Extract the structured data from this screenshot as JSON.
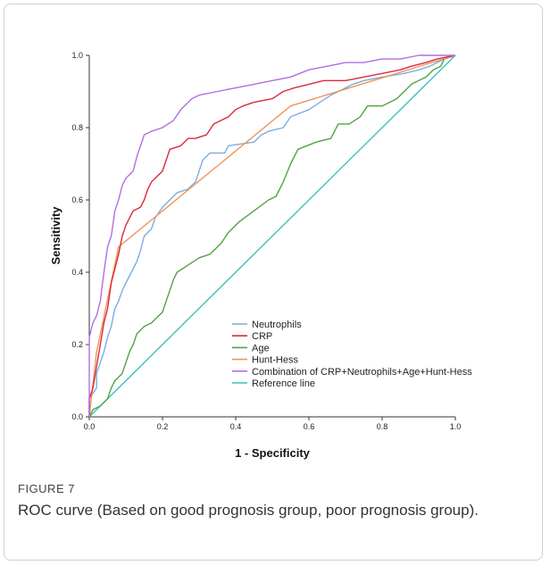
{
  "figure": {
    "label": "FIGURE 7",
    "caption": "ROC curve (Based on good prognosis group, poor prognosis group)."
  },
  "chart_data": {
    "type": "line",
    "title": "",
    "xlabel": "1 - Specificity",
    "ylabel": "Sensitivity",
    "xlim": [
      0,
      1
    ],
    "ylim": [
      0,
      1
    ],
    "xticks": [
      "0.0",
      "0.2",
      "0.4",
      "0.6",
      "0.8",
      "1.0"
    ],
    "yticks": [
      "0.0",
      "0.2",
      "0.4",
      "0.6",
      "0.8",
      "1.0"
    ],
    "grid": false,
    "legend_position": "bottom-right",
    "series": [
      {
        "name": "Neutrophils",
        "color": "#7aaee2",
        "points": [
          [
            0,
            0
          ],
          [
            0,
            0.05
          ],
          [
            0.02,
            0.08
          ],
          [
            0.02,
            0.12
          ],
          [
            0.03,
            0.15
          ],
          [
            0.04,
            0.18
          ],
          [
            0.05,
            0.22
          ],
          [
            0.06,
            0.25
          ],
          [
            0.07,
            0.3
          ],
          [
            0.08,
            0.32
          ],
          [
            0.09,
            0.35
          ],
          [
            0.1,
            0.37
          ],
          [
            0.11,
            0.39
          ],
          [
            0.12,
            0.41
          ],
          [
            0.13,
            0.43
          ],
          [
            0.14,
            0.46
          ],
          [
            0.15,
            0.5
          ],
          [
            0.17,
            0.52
          ],
          [
            0.18,
            0.55
          ],
          [
            0.2,
            0.58
          ],
          [
            0.22,
            0.6
          ],
          [
            0.24,
            0.62
          ],
          [
            0.27,
            0.63
          ],
          [
            0.29,
            0.65
          ],
          [
            0.3,
            0.68
          ],
          [
            0.31,
            0.71
          ],
          [
            0.33,
            0.73
          ],
          [
            0.37,
            0.73
          ],
          [
            0.38,
            0.75
          ],
          [
            0.45,
            0.76
          ],
          [
            0.47,
            0.78
          ],
          [
            0.49,
            0.79
          ],
          [
            0.53,
            0.8
          ],
          [
            0.55,
            0.83
          ],
          [
            0.6,
            0.85
          ],
          [
            0.63,
            0.87
          ],
          [
            0.66,
            0.89
          ],
          [
            0.68,
            0.9
          ],
          [
            0.72,
            0.92
          ],
          [
            0.75,
            0.93
          ],
          [
            0.8,
            0.94
          ],
          [
            0.86,
            0.95
          ],
          [
            0.9,
            0.96
          ],
          [
            0.93,
            0.97
          ],
          [
            0.95,
            0.98
          ],
          [
            0.97,
            0.99
          ],
          [
            1,
            1
          ]
        ]
      },
      {
        "name": "CRP",
        "color": "#d92b3c",
        "points": [
          [
            0,
            0
          ],
          [
            0,
            0.05
          ],
          [
            0.01,
            0.08
          ],
          [
            0.02,
            0.14
          ],
          [
            0.03,
            0.2
          ],
          [
            0.04,
            0.26
          ],
          [
            0.05,
            0.3
          ],
          [
            0.06,
            0.37
          ],
          [
            0.07,
            0.41
          ],
          [
            0.08,
            0.45
          ],
          [
            0.09,
            0.5
          ],
          [
            0.1,
            0.53
          ],
          [
            0.11,
            0.55
          ],
          [
            0.12,
            0.57
          ],
          [
            0.14,
            0.58
          ],
          [
            0.15,
            0.6
          ],
          [
            0.16,
            0.63
          ],
          [
            0.17,
            0.65
          ],
          [
            0.18,
            0.66
          ],
          [
            0.2,
            0.68
          ],
          [
            0.21,
            0.71
          ],
          [
            0.22,
            0.74
          ],
          [
            0.25,
            0.75
          ],
          [
            0.27,
            0.77
          ],
          [
            0.29,
            0.77
          ],
          [
            0.32,
            0.78
          ],
          [
            0.34,
            0.81
          ],
          [
            0.36,
            0.82
          ],
          [
            0.38,
            0.83
          ],
          [
            0.4,
            0.85
          ],
          [
            0.42,
            0.86
          ],
          [
            0.45,
            0.87
          ],
          [
            0.5,
            0.88
          ],
          [
            0.53,
            0.9
          ],
          [
            0.56,
            0.91
          ],
          [
            0.6,
            0.92
          ],
          [
            0.64,
            0.93
          ],
          [
            0.7,
            0.93
          ],
          [
            0.75,
            0.94
          ],
          [
            0.8,
            0.95
          ],
          [
            0.85,
            0.96
          ],
          [
            0.88,
            0.97
          ],
          [
            0.92,
            0.98
          ],
          [
            0.95,
            0.99
          ],
          [
            1,
            1
          ]
        ]
      },
      {
        "name": "Age",
        "color": "#53a245",
        "points": [
          [
            0,
            0
          ],
          [
            0.01,
            0.02
          ],
          [
            0.03,
            0.03
          ],
          [
            0.05,
            0.05
          ],
          [
            0.06,
            0.08
          ],
          [
            0.07,
            0.1
          ],
          [
            0.09,
            0.12
          ],
          [
            0.1,
            0.15
          ],
          [
            0.11,
            0.18
          ],
          [
            0.12,
            0.2
          ],
          [
            0.13,
            0.23
          ],
          [
            0.15,
            0.25
          ],
          [
            0.17,
            0.26
          ],
          [
            0.19,
            0.28
          ],
          [
            0.2,
            0.29
          ],
          [
            0.21,
            0.32
          ],
          [
            0.22,
            0.35
          ],
          [
            0.23,
            0.38
          ],
          [
            0.24,
            0.4
          ],
          [
            0.27,
            0.42
          ],
          [
            0.3,
            0.44
          ],
          [
            0.33,
            0.45
          ],
          [
            0.36,
            0.48
          ],
          [
            0.38,
            0.51
          ],
          [
            0.41,
            0.54
          ],
          [
            0.45,
            0.57
          ],
          [
            0.49,
            0.6
          ],
          [
            0.51,
            0.61
          ],
          [
            0.53,
            0.65
          ],
          [
            0.55,
            0.7
          ],
          [
            0.57,
            0.74
          ],
          [
            0.62,
            0.76
          ],
          [
            0.66,
            0.77
          ],
          [
            0.68,
            0.81
          ],
          [
            0.71,
            0.81
          ],
          [
            0.74,
            0.83
          ],
          [
            0.76,
            0.86
          ],
          [
            0.8,
            0.86
          ],
          [
            0.84,
            0.88
          ],
          [
            0.86,
            0.9
          ],
          [
            0.88,
            0.92
          ],
          [
            0.9,
            0.93
          ],
          [
            0.92,
            0.94
          ],
          [
            0.94,
            0.96
          ],
          [
            0.96,
            0.97
          ],
          [
            0.97,
            0.99
          ],
          [
            1,
            1
          ]
        ]
      },
      {
        "name": "Hunt-Hess",
        "color": "#f2935c",
        "points": [
          [
            0,
            0
          ],
          [
            0.02,
            0.18
          ],
          [
            0.08,
            0.47
          ],
          [
            0.55,
            0.86
          ],
          [
            1,
            1
          ]
        ]
      },
      {
        "name": "Combination of CRP+Neutrophils+Age+Hunt-Hess",
        "color": "#b36ee0",
        "points": [
          [
            0,
            0
          ],
          [
            0,
            0.08
          ],
          [
            0,
            0.22
          ],
          [
            0.01,
            0.26
          ],
          [
            0.02,
            0.28
          ],
          [
            0.03,
            0.32
          ],
          [
            0.04,
            0.4
          ],
          [
            0.05,
            0.47
          ],
          [
            0.06,
            0.5
          ],
          [
            0.07,
            0.57
          ],
          [
            0.08,
            0.6
          ],
          [
            0.09,
            0.64
          ],
          [
            0.1,
            0.66
          ],
          [
            0.12,
            0.68
          ],
          [
            0.13,
            0.72
          ],
          [
            0.14,
            0.75
          ],
          [
            0.15,
            0.78
          ],
          [
            0.17,
            0.79
          ],
          [
            0.2,
            0.8
          ],
          [
            0.23,
            0.82
          ],
          [
            0.25,
            0.85
          ],
          [
            0.28,
            0.88
          ],
          [
            0.3,
            0.89
          ],
          [
            0.35,
            0.9
          ],
          [
            0.4,
            0.91
          ],
          [
            0.45,
            0.92
          ],
          [
            0.5,
            0.93
          ],
          [
            0.55,
            0.94
          ],
          [
            0.6,
            0.96
          ],
          [
            0.65,
            0.97
          ],
          [
            0.7,
            0.98
          ],
          [
            0.75,
            0.98
          ],
          [
            0.8,
            0.99
          ],
          [
            0.85,
            0.99
          ],
          [
            0.9,
            1
          ],
          [
            1,
            1
          ]
        ]
      },
      {
        "name": "Reference line",
        "color": "#3cc0c0",
        "points": [
          [
            0,
            0
          ],
          [
            1,
            1
          ]
        ]
      }
    ]
  }
}
